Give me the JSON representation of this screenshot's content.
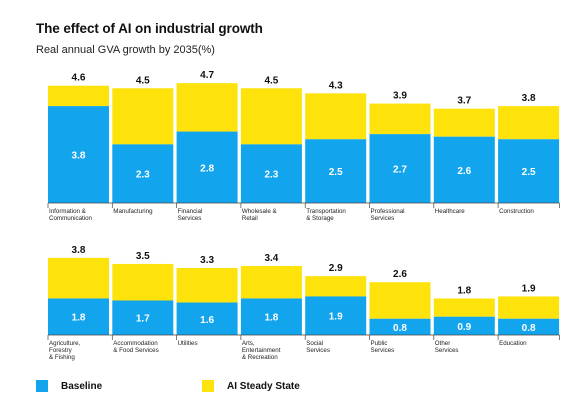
{
  "title": "The effect of AI on industrial growth",
  "subtitle": "Real annual GVA growth by 2035(%)",
  "colors": {
    "baseline": "#12a4ec",
    "ai": "#fde20c"
  },
  "legend": {
    "baseline": "Baseline",
    "ai": "AI Steady State"
  },
  "chart_data": [
    {
      "type": "bar",
      "stacked": true,
      "categories": [
        [
          "Information &",
          "Communication"
        ],
        [
          "Manufacturing"
        ],
        [
          "Financial",
          "Services"
        ],
        [
          "Wholesale &",
          "Retail"
        ],
        [
          "Transportation",
          "& Storage"
        ],
        [
          "Professional",
          "Services"
        ],
        [
          "Healthcare"
        ],
        [
          "Construction"
        ]
      ],
      "series": [
        {
          "name": "Baseline",
          "values": [
            3.8,
            2.3,
            2.8,
            2.3,
            2.5,
            2.7,
            2.6,
            2.5
          ]
        },
        {
          "name": "AI Steady State",
          "values": [
            0.8,
            2.2,
            1.9,
            2.2,
            1.8,
            1.2,
            1.1,
            1.3
          ]
        }
      ],
      "totals": [
        4.6,
        4.5,
        4.7,
        4.5,
        4.3,
        3.9,
        3.7,
        3.8
      ]
    },
    {
      "type": "bar",
      "stacked": true,
      "categories": [
        [
          "Agriculture,",
          "Forestry",
          "& Fishing"
        ],
        [
          "Accommodation",
          "& Food Services"
        ],
        [
          "Utilities"
        ],
        [
          "Arts,",
          "Entertainment",
          "& Recreation"
        ],
        [
          "Social",
          "Services"
        ],
        [
          "Public",
          "Services"
        ],
        [
          "Other",
          "Services"
        ],
        [
          "Education"
        ]
      ],
      "series": [
        {
          "name": "Baseline",
          "values": [
            1.8,
            1.7,
            1.6,
            1.8,
            1.9,
            0.8,
            0.9,
            0.8
          ]
        },
        {
          "name": "AI Steady State",
          "values": [
            2.0,
            1.8,
            1.7,
            1.6,
            1.0,
            1.8,
            0.9,
            1.1
          ]
        }
      ],
      "totals": [
        3.8,
        3.5,
        3.3,
        3.4,
        2.9,
        2.6,
        1.8,
        1.9
      ]
    }
  ]
}
